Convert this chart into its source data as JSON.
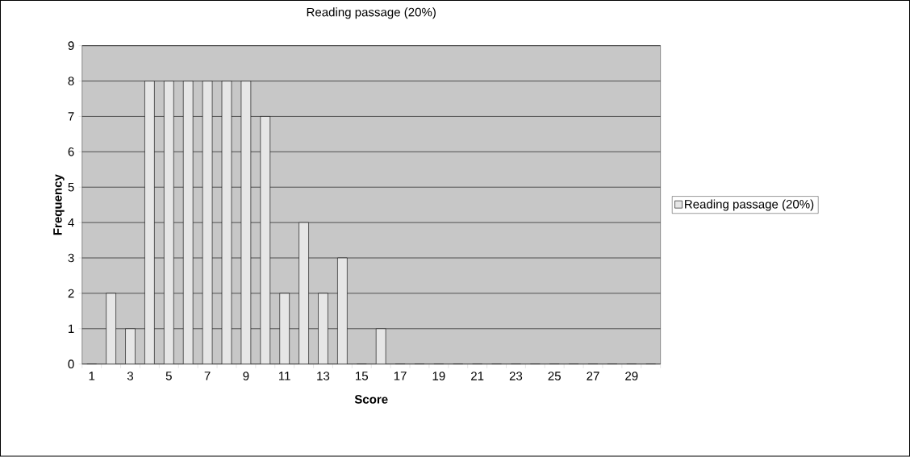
{
  "chart_data": {
    "type": "bar",
    "title": "Reading passage (20%)",
    "xlabel": "Score",
    "ylabel": "Frequency",
    "categories": [
      "1",
      null,
      "3",
      null,
      "5",
      null,
      "7",
      null,
      "9",
      null,
      "11",
      null,
      "13",
      null,
      "15",
      null,
      "17",
      null,
      "19",
      null,
      "21",
      null,
      "23",
      null,
      "25",
      null,
      "27",
      null,
      "29",
      null
    ],
    "series": [
      {
        "name": "Reading passage (20%)",
        "color": "#e6e6e6",
        "values": [
          0,
          2,
          1,
          8,
          8,
          8,
          8,
          8,
          8,
          7,
          2,
          4,
          2,
          3,
          0,
          1,
          0,
          0,
          0,
          0,
          0,
          0,
          0,
          0,
          0,
          0,
          0,
          0,
          0,
          0
        ]
      }
    ],
    "ylim": [
      0,
      9
    ],
    "yticks": [
      0,
      1,
      2,
      3,
      4,
      5,
      6,
      7,
      8,
      9
    ],
    "grid": "y",
    "legend": "right"
  }
}
